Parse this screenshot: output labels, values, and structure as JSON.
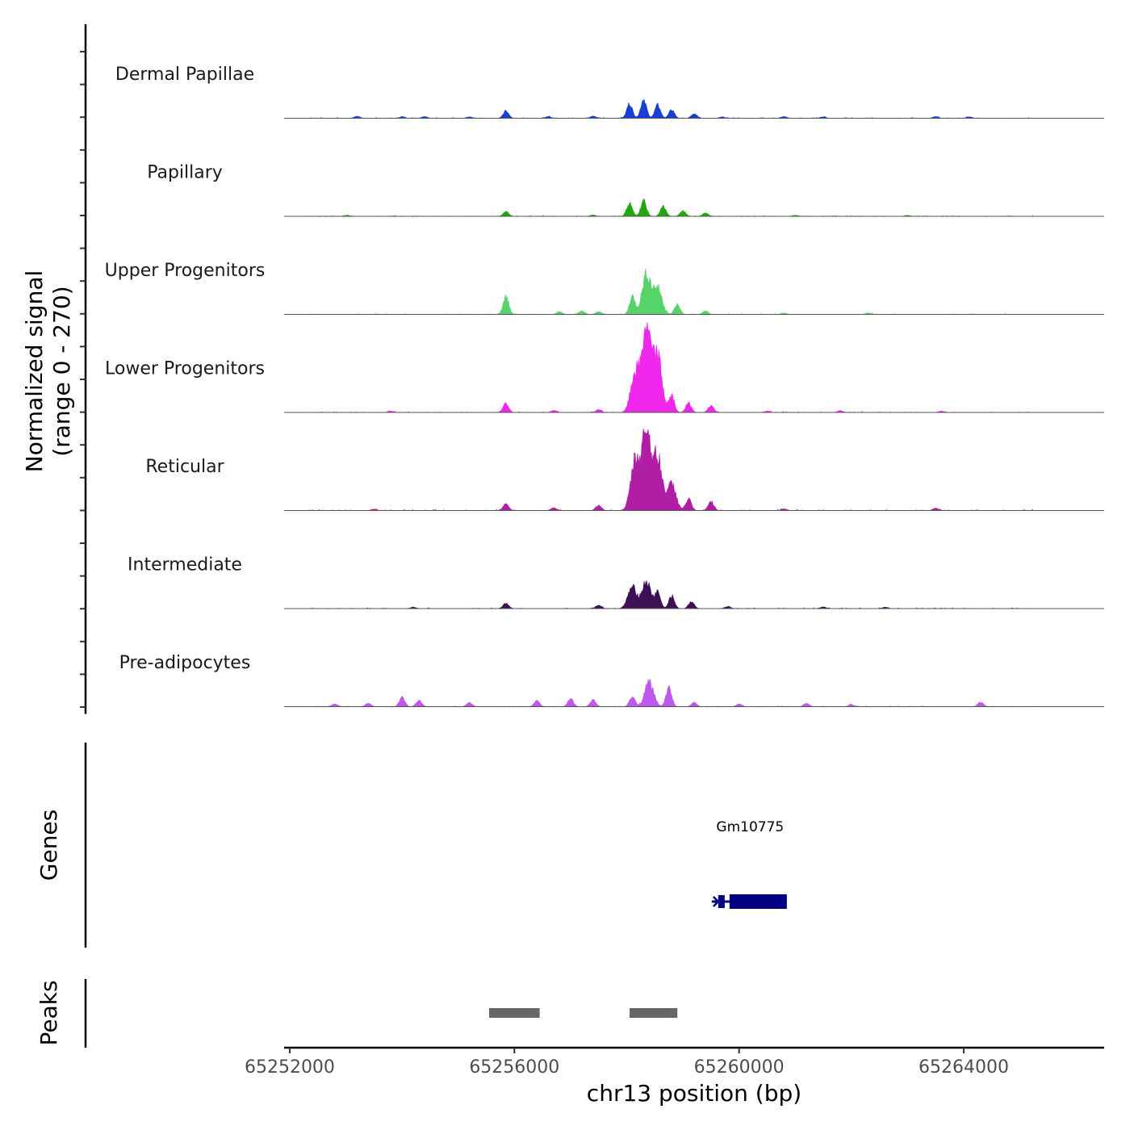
{
  "chart_data": {
    "type": "area",
    "title": "",
    "xlabel": "chr13 position (bp)",
    "ylabel": "Normalized signal\n(range 0 - 270)",
    "ylabel_lines": [
      "Normalized signal",
      "(range 0 - 270)"
    ],
    "ylim": [
      0,
      270
    ],
    "xlim": [
      65251900,
      65266500
    ],
    "x_ticks": [
      65252000,
      65256000,
      65260000,
      65264000
    ],
    "x_tick_labels": [
      "65252000",
      "65256000",
      "65260000",
      "65264000"
    ],
    "tracks": [
      {
        "name": "Dermal Papillae",
        "color": "#1a3fd4",
        "peaks": [
          [
            65253200,
            6
          ],
          [
            65254000,
            4
          ],
          [
            65254400,
            5
          ],
          [
            65255200,
            4
          ],
          [
            65255850,
            22
          ],
          [
            65256600,
            5
          ],
          [
            65257400,
            6
          ],
          [
            65258050,
            45
          ],
          [
            65258300,
            60
          ],
          [
            65258550,
            40
          ],
          [
            65258800,
            25
          ],
          [
            65259200,
            14
          ],
          [
            65259700,
            4
          ],
          [
            65260800,
            5
          ],
          [
            65261500,
            4
          ],
          [
            65263500,
            5
          ],
          [
            65264100,
            4
          ]
        ]
      },
      {
        "name": "Papillary",
        "color": "#21a80e",
        "peaks": [
          [
            65253000,
            3
          ],
          [
            65255850,
            14
          ],
          [
            65257400,
            4
          ],
          [
            65258050,
            40
          ],
          [
            65258300,
            48
          ],
          [
            65258650,
            30
          ],
          [
            65259000,
            16
          ],
          [
            65259400,
            10
          ],
          [
            65261000,
            3
          ],
          [
            65263000,
            3
          ]
        ]
      },
      {
        "name": "Upper Progenitors",
        "color": "#56d46a",
        "peaks": [
          [
            65255850,
            55
          ],
          [
            65256800,
            8
          ],
          [
            65257200,
            10
          ],
          [
            65257500,
            8
          ],
          [
            65258100,
            55
          ],
          [
            65258350,
            120
          ],
          [
            65258550,
            80
          ],
          [
            65258900,
            30
          ],
          [
            65259400,
            10
          ],
          [
            65260800,
            4
          ],
          [
            65262300,
            4
          ]
        ]
      },
      {
        "name": "Lower Progenitors",
        "color": "#f026ec",
        "peaks": [
          [
            65253800,
            4
          ],
          [
            65255850,
            28
          ],
          [
            65256700,
            6
          ],
          [
            65257500,
            8
          ],
          [
            65258150,
            120
          ],
          [
            65258350,
            260
          ],
          [
            65258550,
            170
          ],
          [
            65258800,
            50
          ],
          [
            65259100,
            28
          ],
          [
            65259500,
            20
          ],
          [
            65260500,
            4
          ],
          [
            65261800,
            5
          ],
          [
            65263600,
            4
          ]
        ]
      },
      {
        "name": "Reticular",
        "color": "#b01ea6",
        "peaks": [
          [
            65253500,
            4
          ],
          [
            65255850,
            20
          ],
          [
            65256700,
            8
          ],
          [
            65257500,
            16
          ],
          [
            65258150,
            150
          ],
          [
            65258350,
            250
          ],
          [
            65258550,
            160
          ],
          [
            65258800,
            80
          ],
          [
            65259100,
            35
          ],
          [
            65259500,
            28
          ],
          [
            65260800,
            5
          ],
          [
            65263500,
            7
          ]
        ]
      },
      {
        "name": "Intermediate",
        "color": "#3d0f56",
        "peaks": [
          [
            65254200,
            4
          ],
          [
            65255850,
            16
          ],
          [
            65257500,
            10
          ],
          [
            65258100,
            65
          ],
          [
            65258350,
            82
          ],
          [
            65258550,
            50
          ],
          [
            65258800,
            38
          ],
          [
            65259150,
            22
          ],
          [
            65259800,
            6
          ],
          [
            65261500,
            5
          ],
          [
            65262600,
            4
          ]
        ]
      },
      {
        "name": "Pre-adipocytes",
        "color": "#c058f0",
        "peaks": [
          [
            65252800,
            8
          ],
          [
            65253400,
            10
          ],
          [
            65254000,
            28
          ],
          [
            65254300,
            20
          ],
          [
            65255200,
            12
          ],
          [
            65256400,
            18
          ],
          [
            65257000,
            25
          ],
          [
            65257400,
            20
          ],
          [
            65258100,
            30
          ],
          [
            65258400,
            75
          ],
          [
            65258750,
            58
          ],
          [
            65259200,
            12
          ],
          [
            65260000,
            8
          ],
          [
            65261200,
            10
          ],
          [
            65262000,
            6
          ],
          [
            65264300,
            14
          ]
        ]
      }
    ],
    "genes": [
      {
        "name": "Gm10775",
        "start": 65259600,
        "end": 65260850,
        "strand": "-",
        "color": "#000080"
      }
    ],
    "peak_regions": [
      {
        "start": 65255550,
        "end": 65256450
      },
      {
        "start": 65258050,
        "end": 65258900
      }
    ],
    "peaks_color": "#666666",
    "gene_panel_label": "Genes",
    "peaks_panel_label": "Peaks"
  }
}
